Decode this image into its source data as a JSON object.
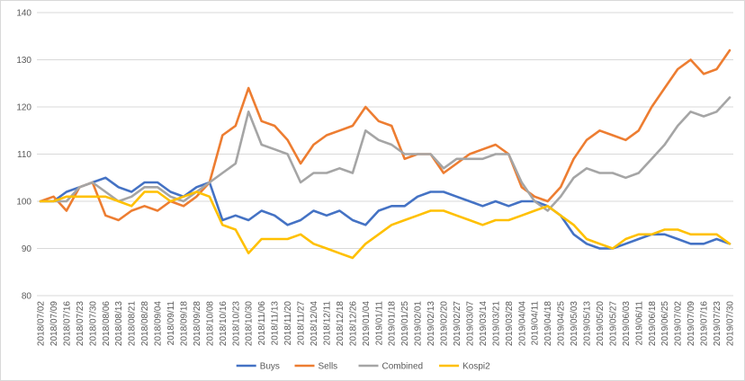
{
  "chart_data": {
    "type": "line",
    "title": "",
    "xlabel": "",
    "ylabel": "",
    "ylim": [
      80,
      140
    ],
    "yticks": [
      80,
      90,
      100,
      110,
      120,
      130,
      140
    ],
    "grid": "horizontal",
    "legend": "bottom",
    "x_tick_labels": [
      "2018/07/02",
      "2018/07/09",
      "2018/07/16",
      "2018/07/23",
      "2018/07/30",
      "2018/08/06",
      "2018/08/13",
      "2018/08/21",
      "2018/08/28",
      "2018/09/04",
      "2018/09/11",
      "2018/09/18",
      "2018/09/28",
      "2018/10/08",
      "2018/10/16",
      "2018/10/23",
      "2018/10/30",
      "2018/11/06",
      "2018/11/13",
      "2018/11/20",
      "2018/11/27",
      "2018/12/04",
      "2018/12/11",
      "2018/12/18",
      "2018/12/26",
      "2019/01/04",
      "2019/01/11",
      "2019/01/18",
      "2019/01/25",
      "2019/02/01",
      "2019/02/13",
      "2019/02/20",
      "2019/02/27",
      "2019/03/07",
      "2019/03/14",
      "2019/03/21",
      "2019/03/28",
      "2019/04/04",
      "2019/04/11",
      "2019/04/18",
      "2019/04/25",
      "2019/05/03",
      "2019/05/13",
      "2019/05/20",
      "2019/05/27",
      "2019/06/03",
      "2019/06/11",
      "2019/06/18",
      "2019/06/25",
      "2019/07/02",
      "2019/07/09",
      "2019/07/16",
      "2019/07/23",
      "2019/07/30"
    ],
    "series": [
      {
        "name": "Buys",
        "color": "#4472c4",
        "values": [
          100,
          100,
          102,
          103,
          104,
          105,
          103,
          102,
          104,
          104,
          102,
          101,
          103,
          104,
          96,
          97,
          96,
          98,
          97,
          95,
          96,
          98,
          97,
          98,
          96,
          95,
          98,
          99,
          99,
          101,
          102,
          102,
          101,
          100,
          99,
          100,
          99,
          100,
          100,
          99,
          97,
          93,
          91,
          90,
          90,
          91,
          92,
          93,
          93,
          92,
          91,
          91,
          92,
          91
        ]
      },
      {
        "name": "Sells",
        "color": "#ed7d31",
        "values": [
          100,
          101,
          98,
          103,
          104,
          97,
          96,
          98,
          99,
          98,
          100,
          99,
          101,
          104,
          114,
          116,
          124,
          117,
          116,
          113,
          108,
          112,
          114,
          115,
          116,
          120,
          117,
          116,
          109,
          110,
          110,
          106,
          108,
          110,
          111,
          112,
          110,
          103,
          101,
          100,
          103,
          109,
          113,
          115,
          114,
          113,
          115,
          120,
          124,
          128,
          130,
          127,
          128,
          132
        ]
      },
      {
        "name": "Combined",
        "color": "#a5a5a5",
        "values": [
          100,
          100,
          100,
          103,
          104,
          102,
          100,
          101,
          103,
          103,
          101,
          100,
          102,
          104,
          106,
          108,
          119,
          112,
          111,
          110,
          104,
          106,
          106,
          107,
          106,
          115,
          113,
          112,
          110,
          110,
          110,
          107,
          109,
          109,
          109,
          110,
          110,
          104,
          100,
          98,
          101,
          105,
          107,
          106,
          106,
          105,
          106,
          109,
          112,
          116,
          119,
          118,
          119,
          122
        ]
      },
      {
        "name": "Kospi2",
        "color": "#ffc000",
        "values": [
          100,
          100,
          101,
          101,
          101,
          101,
          100,
          99,
          102,
          102,
          100,
          101,
          102,
          101,
          95,
          94,
          89,
          92,
          92,
          92,
          93,
          91,
          90,
          89,
          88,
          91,
          93,
          95,
          96,
          97,
          98,
          98,
          97,
          96,
          95,
          96,
          96,
          97,
          98,
          99,
          97,
          95,
          92,
          91,
          90,
          92,
          93,
          93,
          94,
          94,
          93,
          93,
          93,
          91
        ]
      }
    ]
  }
}
